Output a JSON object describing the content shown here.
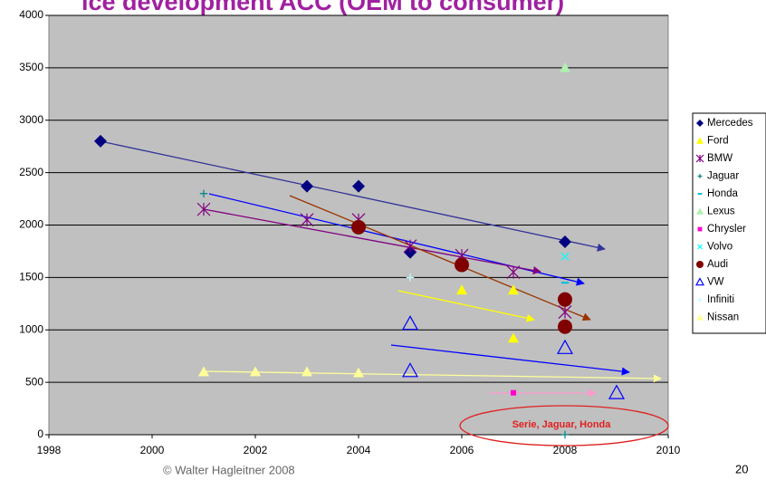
{
  "chart_data": {
    "type": "scatter",
    "title": "ice development ACC (OEM to consumer)",
    "annotation": "Serie, Jaguar, Honda",
    "footer": "© Walter Hagleitner   2008",
    "page_number": "20",
    "xlim": [
      1998,
      2010
    ],
    "xticks": [
      1998,
      2000,
      2002,
      2004,
      2006,
      2008,
      2010
    ],
    "ylim": [
      0,
      4000
    ],
    "yticks": [
      0,
      500,
      1000,
      1500,
      2000,
      2500,
      3000,
      3500,
      4000
    ],
    "grid": true,
    "series": [
      {
        "name": "Mercedes",
        "color": "#000080",
        "marker": "diamond",
        "x": [
          1999,
          2003,
          2004,
          2005,
          2008,
          2008
        ],
        "values": [
          2800,
          2370,
          2370,
          1740,
          1840,
          1030
        ]
      },
      {
        "name": "Ford",
        "color": "#ffff00",
        "marker": "triangle",
        "x": [
          2006,
          2007,
          2007
        ],
        "values": [
          1380,
          1380,
          920
        ]
      },
      {
        "name": "BMW",
        "color": "#800080",
        "marker": "star",
        "x": [
          2001,
          2003,
          2004,
          2005,
          2006,
          2007,
          2008
        ],
        "values": [
          2150,
          2050,
          2050,
          1800,
          1710,
          1550,
          1170
        ]
      },
      {
        "name": "Jaguar",
        "color": "#008080",
        "marker": "plus",
        "x": [
          2001,
          2008
        ],
        "values": [
          2300,
          0
        ]
      },
      {
        "name": "Honda",
        "color": "#00c0e0",
        "marker": "dash",
        "x": [
          2008
        ],
        "values": [
          1450
        ]
      },
      {
        "name": "Lexus",
        "color": "#b0f0b0",
        "marker": "triangle",
        "x": [
          2008
        ],
        "values": [
          3500
        ]
      },
      {
        "name": "Chrysler",
        "color": "#ff00cc",
        "marker": "square",
        "x": [
          2007
        ],
        "values": [
          400
        ]
      },
      {
        "name": "Volvo",
        "color": "#00ffff",
        "marker": "cross",
        "x": [
          2008
        ],
        "values": [
          1700
        ]
      },
      {
        "name": "Audi",
        "color": "#800000",
        "marker": "circle",
        "x": [
          2004,
          2006,
          2008,
          2008
        ],
        "values": [
          1980,
          1620,
          1290,
          1030
        ]
      },
      {
        "name": "VW",
        "color": "#0000ff",
        "marker": "opentriangle",
        "x": [
          2005,
          2005,
          2008,
          2009
        ],
        "values": [
          1060,
          610,
          830,
          400
        ]
      },
      {
        "name": "Infiniti",
        "color": "#c0ffff",
        "marker": "plus",
        "x": [
          2005
        ],
        "values": [
          1500
        ]
      },
      {
        "name": "Nissan",
        "color": "#ffff99",
        "marker": "triangle",
        "x": [
          2001,
          2002,
          2003,
          2004
        ],
        "values": [
          600,
          600,
          600,
          590
        ]
      }
    ]
  }
}
